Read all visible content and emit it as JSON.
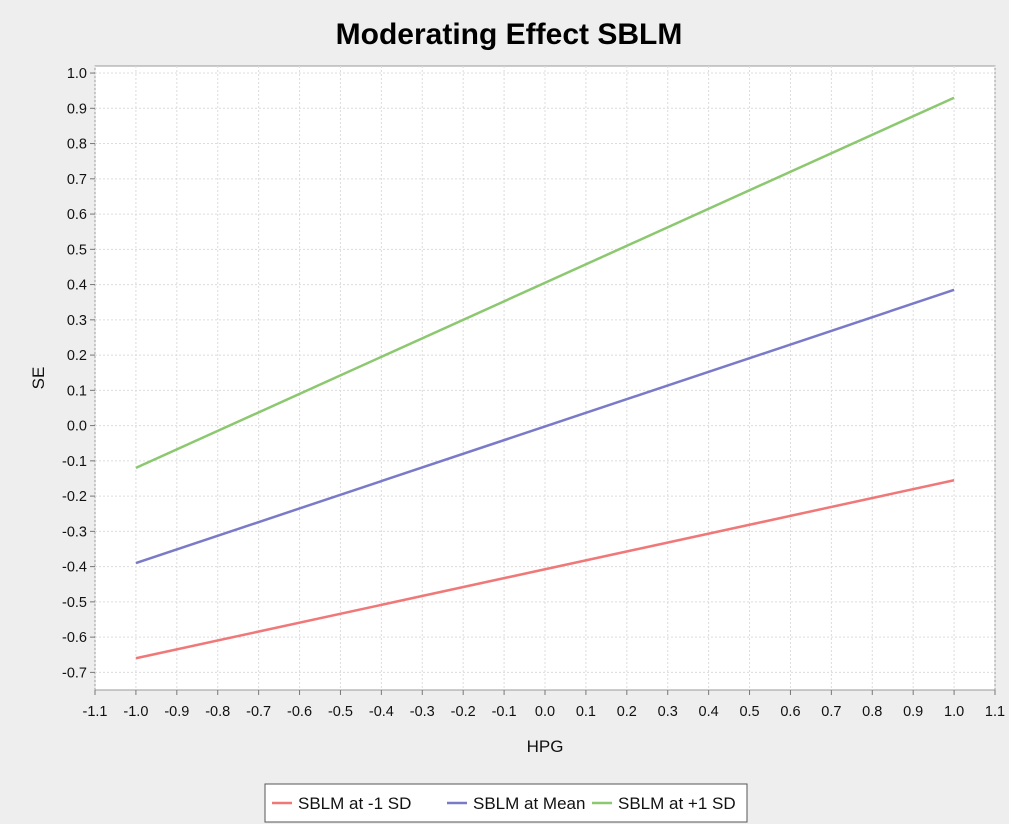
{
  "chart_data": {
    "type": "line",
    "title": "Moderating Effect SBLM",
    "xlabel": "HPG",
    "ylabel": "SE",
    "xlim": [
      -1.1,
      1.1
    ],
    "ylim": [
      -0.75,
      1.02
    ],
    "x_ticks": [
      "-1.1",
      "-1.0",
      "-0.9",
      "-0.8",
      "-0.7",
      "-0.6",
      "-0.5",
      "-0.4",
      "-0.3",
      "-0.2",
      "-0.1",
      "0.0",
      "0.1",
      "0.2",
      "0.3",
      "0.4",
      "0.5",
      "0.6",
      "0.7",
      "0.8",
      "0.9",
      "1.0",
      "1.1"
    ],
    "y_ticks": [
      "1.0",
      "0.9",
      "0.8",
      "0.7",
      "0.6",
      "0.5",
      "0.4",
      "0.3",
      "0.2",
      "0.1",
      "0.0",
      "-0.1",
      "-0.2",
      "-0.3",
      "-0.4",
      "-0.5",
      "-0.6",
      "-0.7"
    ],
    "grid": true,
    "legend_position": "bottom",
    "series": [
      {
        "name": "SBLM at -1 SD",
        "color": "#f07878",
        "x": [
          -1.0,
          1.0
        ],
        "y": [
          -0.66,
          -0.155
        ]
      },
      {
        "name": "SBLM at Mean",
        "color": "#7a7ac8",
        "x": [
          -1.0,
          1.0
        ],
        "y": [
          -0.39,
          0.385
        ]
      },
      {
        "name": "SBLM at +1 SD",
        "color": "#8cc870",
        "x": [
          -1.0,
          1.0
        ],
        "y": [
          -0.12,
          0.93
        ]
      }
    ]
  }
}
